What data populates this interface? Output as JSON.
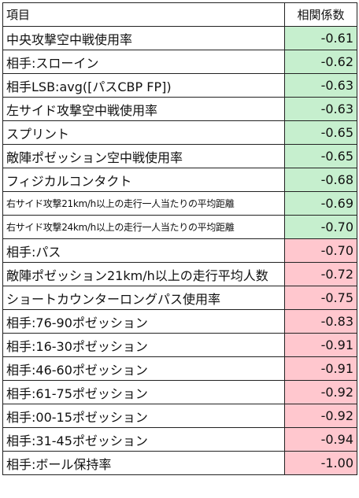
{
  "table": {
    "headers": {
      "item": "項目",
      "corr": "相関係数"
    },
    "colors": {
      "green": "#c6efce",
      "red": "#ffc7ce"
    },
    "rows": [
      {
        "item": "中央攻撃空中戦使用率",
        "value": "-0.61",
        "tone": "green"
      },
      {
        "item": "相手:スローイン",
        "value": "-0.62",
        "tone": "green"
      },
      {
        "item": "相手LSB:avg([パスCBP FP])",
        "value": "-0.63",
        "tone": "green"
      },
      {
        "item": "左サイド攻撃空中戦使用率",
        "value": "-0.63",
        "tone": "green"
      },
      {
        "item": "スプリント",
        "value": "-0.65",
        "tone": "green"
      },
      {
        "item": "敵陣ポゼッション空中戦使用率",
        "value": "-0.65",
        "tone": "green"
      },
      {
        "item": "フィジカルコンタクト",
        "value": "-0.68",
        "tone": "green"
      },
      {
        "item": "右サイド攻撃21km/h以上の走行一人当たりの平均距離",
        "value": "-0.69",
        "tone": "green",
        "small": true
      },
      {
        "item": "右サイド攻撃24km/h以上の走行一人当たりの平均距離",
        "value": "-0.70",
        "tone": "green",
        "small": true
      },
      {
        "item": "相手:パス",
        "value": "-0.70",
        "tone": "red"
      },
      {
        "item": "敵陣ポゼッション21km/h以上の走行平均人数",
        "value": "-0.72",
        "tone": "red"
      },
      {
        "item": "ショートカウンターロングパス使用率",
        "value": "-0.75",
        "tone": "red"
      },
      {
        "item": "相手:76-90ポゼッション",
        "value": "-0.83",
        "tone": "red"
      },
      {
        "item": "相手:16-30ポゼッション",
        "value": "-0.91",
        "tone": "red"
      },
      {
        "item": "相手:46-60ポゼッション",
        "value": "-0.91",
        "tone": "red"
      },
      {
        "item": "相手:61-75ポゼッション",
        "value": "-0.92",
        "tone": "red"
      },
      {
        "item": "相手:00-15ポゼッション",
        "value": "-0.92",
        "tone": "red"
      },
      {
        "item": "相手:31-45ポゼッション",
        "value": "-0.94",
        "tone": "red"
      },
      {
        "item": "相手:ボール保持率",
        "value": "-1.00",
        "tone": "red"
      }
    ]
  }
}
